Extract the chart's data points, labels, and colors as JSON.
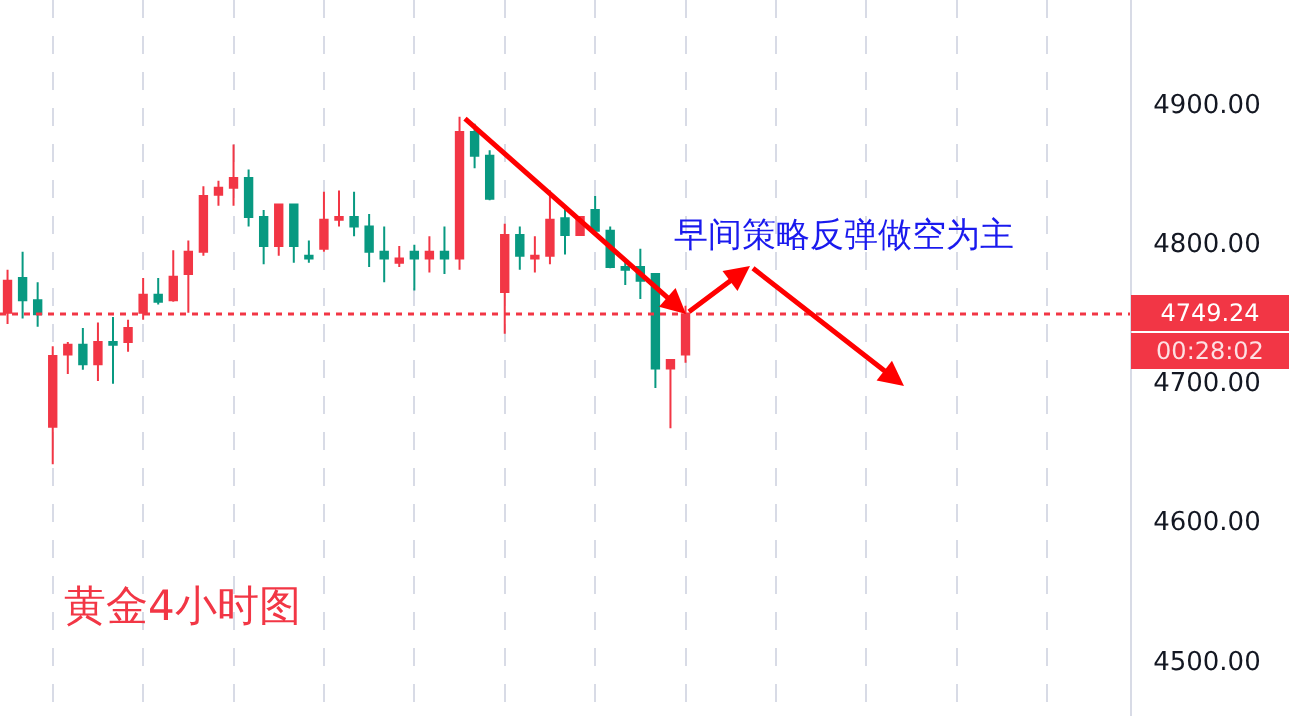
{
  "chart_data": {
    "type": "candlestick",
    "categories": [
      null,
      null,
      null,
      null,
      null,
      null,
      null,
      null,
      null,
      null,
      null,
      null,
      null,
      null,
      null,
      null,
      null,
      null,
      null,
      null,
      null,
      null,
      null,
      null,
      null,
      null,
      null,
      null,
      null,
      null,
      null,
      null,
      null,
      null,
      null,
      null,
      null,
      null,
      null,
      null,
      null,
      null,
      null,
      null,
      null,
      null,
      null,
      null,
      null,
      null,
      null,
      null,
      null,
      null,
      null,
      null,
      null,
      null,
      null,
      null,
      null,
      null,
      null,
      null,
      null,
      null,
      null,
      null,
      null,
      null,
      null,
      null,
      null,
      null,
      null
    ],
    "ohlc": [
      [
        4750,
        4781,
        4742,
        4773
      ],
      [
        4775,
        4794,
        4746,
        4759
      ],
      [
        4759,
        4772,
        4740,
        4749
      ],
      [
        4668,
        4726,
        4641,
        4719
      ],
      [
        4720,
        4729,
        4706,
        4727
      ],
      [
        4727,
        4739,
        4709,
        4713
      ],
      [
        4713,
        4743,
        4701,
        4729
      ],
      [
        4729,
        4747,
        4699,
        4727
      ],
      [
        4729,
        4745,
        4722,
        4739
      ],
      [
        4750,
        4775,
        4745,
        4763
      ],
      [
        4763,
        4775,
        4756,
        4758
      ],
      [
        4759,
        4795,
        4758,
        4776
      ],
      [
        4778,
        4802,
        4750,
        4794
      ],
      [
        4794,
        4841,
        4791,
        4834
      ],
      [
        4835,
        4845,
        4827,
        4840
      ],
      [
        4840,
        4871,
        4827,
        4847
      ],
      [
        4847,
        4853,
        4812,
        4819
      ],
      [
        4819,
        4824,
        4785,
        4798
      ],
      [
        4798,
        4828,
        4791,
        4828
      ],
      [
        4828,
        4828,
        4786,
        4798
      ],
      [
        4791,
        4802,
        4786,
        4789
      ],
      [
        4796,
        4837,
        4794,
        4817
      ],
      [
        4817,
        4838,
        4812,
        4819
      ],
      [
        4819,
        4837,
        4805,
        4812
      ],
      [
        4812,
        4821,
        4783,
        4794
      ],
      [
        4794,
        4812,
        4772,
        4789
      ],
      [
        4786,
        4798,
        4783,
        4789
      ],
      [
        4794,
        4799,
        4766,
        4789
      ],
      [
        4789,
        4805,
        4779,
        4794
      ],
      [
        4794,
        4812,
        4778,
        4789
      ],
      [
        4789,
        4891,
        4781,
        4880
      ],
      [
        4880,
        4886,
        4854,
        4863
      ],
      [
        4863,
        4867,
        4831,
        4832
      ],
      [
        4765,
        4814,
        4735,
        4806
      ],
      [
        4806,
        4812,
        4781,
        4791
      ],
      [
        4789,
        4805,
        4779,
        4791
      ],
      [
        4791,
        4838,
        4785,
        4817
      ],
      [
        4818,
        4825,
        4792,
        4806
      ],
      [
        4806,
        4819,
        4806,
        4819
      ],
      [
        4824,
        4834,
        4806,
        4809
      ],
      [
        4809,
        4812,
        4782,
        4783
      ],
      [
        4783,
        4788,
        4770,
        4781
      ],
      [
        4783,
        4796,
        4760,
        4773
      ],
      [
        4778,
        4778,
        4696,
        4710
      ],
      [
        4710,
        4716,
        4667,
        4716
      ],
      [
        4720,
        4755,
        4714,
        4749
      ],
      null,
      null,
      null,
      null,
      null,
      null,
      null,
      null,
      null,
      null,
      null,
      null,
      null,
      null,
      null,
      null,
      null,
      null,
      null,
      null,
      null,
      null,
      null,
      null,
      null,
      null,
      null,
      null,
      null
    ],
    "colors": [
      "#f23645",
      "#089981",
      "#089981",
      "#f23645",
      "#f23645",
      "#089981",
      "#f23645",
      "#089981",
      "#f23645",
      "#f23645",
      "#089981",
      "#f23645",
      "#f23645",
      "#f23645",
      "#f23645",
      "#f23645",
      "#089981",
      "#089981",
      "#f23645",
      "#089981",
      "#089981",
      "#f23645",
      "#f23645",
      "#089981",
      "#089981",
      "#089981",
      "#f23645",
      "#089981",
      "#f23645",
      "#089981",
      "#f23645",
      "#089981",
      "#089981",
      "#f23645",
      "#089981",
      "#f23645",
      "#f23645",
      "#089981",
      "#f23645",
      "#089981",
      "#089981",
      "#089981",
      "#089981",
      "#089981",
      "#f23645",
      "#f23645",
      null,
      null,
      null,
      null,
      null,
      null,
      null,
      null,
      null,
      null,
      null,
      null,
      null,
      null,
      null,
      null,
      null,
      null,
      null,
      null,
      null,
      null,
      null,
      null,
      null,
      null,
      null,
      null,
      null
    ],
    "ylim": [
      4460,
      4975
    ],
    "yticks": [
      {
        "value": 4500,
        "label": "4500.00"
      },
      {
        "value": 4600,
        "label": "4600.00"
      },
      {
        "value": 4700,
        "label": "4700.00"
      },
      {
        "value": 4800,
        "label": "4800.00"
      },
      {
        "value": 4900,
        "label": "4900.00"
      }
    ],
    "grid": "x",
    "ref_lines": [
      {
        "axis": "y",
        "value": 4749.24,
        "label": "4749.24",
        "color": "#f23645",
        "line_style": "dotted"
      }
    ],
    "annotations": [
      "早间策略反弹做空为主",
      "黄金4小时图",
      "00:28:02"
    ]
  }
}
